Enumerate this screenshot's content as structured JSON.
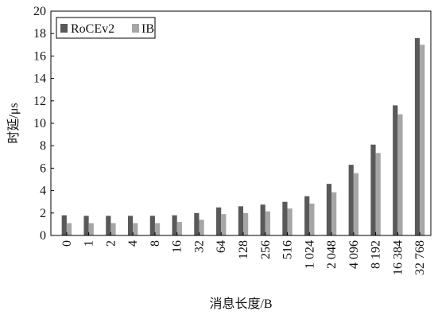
{
  "chart_data": {
    "type": "bar",
    "xlabel": "消息长度/B",
    "ylabel": "时延/μs",
    "ylim": [
      0,
      20
    ],
    "yticks": [
      0,
      2,
      4,
      6,
      8,
      10,
      12,
      14,
      16,
      18,
      20
    ],
    "grid": false,
    "legend_position": "top-left",
    "categories": [
      "0",
      "1",
      "2",
      "4",
      "8",
      "16",
      "32",
      "64",
      "128",
      "256",
      "516",
      "1 024",
      "2 048",
      "4 096",
      "8 192",
      "16 384",
      "32 768"
    ],
    "series": [
      {
        "name": "RoCEv2",
        "color": "#595959",
        "values": [
          1.8,
          1.75,
          1.75,
          1.75,
          1.75,
          1.8,
          2.0,
          2.5,
          2.6,
          2.75,
          3.0,
          3.5,
          4.6,
          6.3,
          8.1,
          11.6,
          17.6
        ]
      },
      {
        "name": "IB",
        "color": "#a6a6a6",
        "values": [
          1.1,
          1.1,
          1.1,
          1.1,
          1.1,
          1.2,
          1.4,
          1.9,
          2.0,
          2.15,
          2.4,
          2.85,
          3.85,
          5.55,
          7.35,
          10.8,
          17.0
        ]
      }
    ]
  }
}
